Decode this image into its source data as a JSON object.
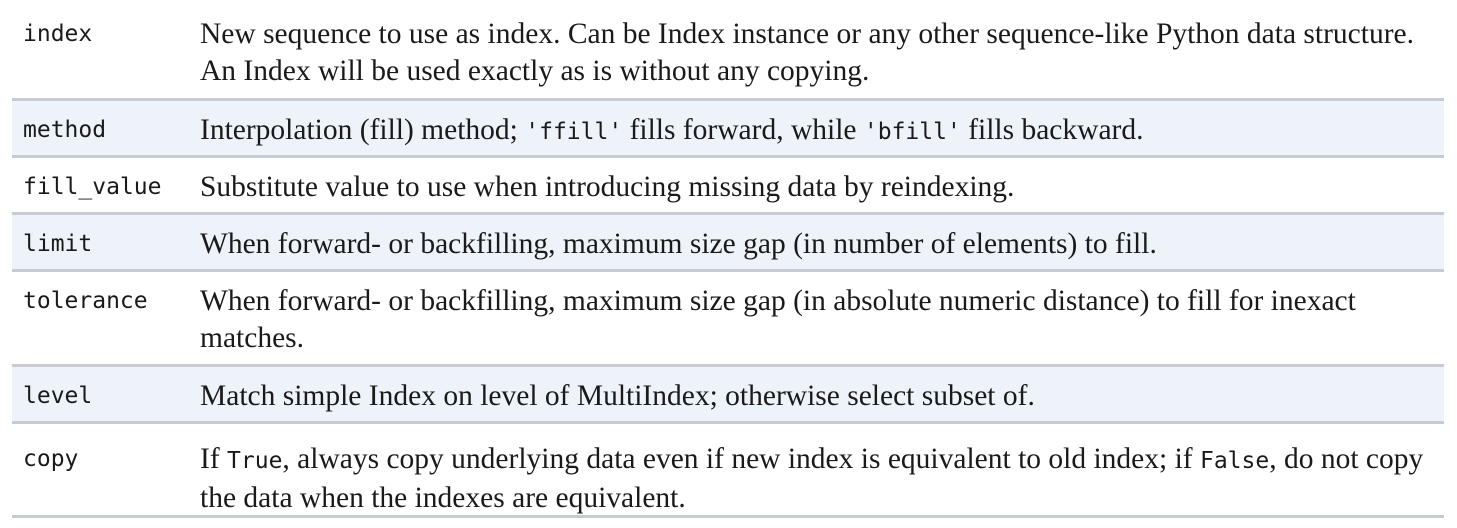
{
  "rows": [
    {
      "param": "index",
      "desc": "New sequence to use as index. Can be Index instance or any other sequence-like Python data structure. An Index will be used exactly as is without any copying."
    },
    {
      "param": "method",
      "desc_a": "Interpolation (fill) method; ",
      "code_a": "'ffill'",
      "desc_b": " fills forward, while ",
      "code_b": "'bfill'",
      "desc_c": " fills backward."
    },
    {
      "param": "fill_value",
      "desc": "Substitute value to use when introducing missing data by reindexing."
    },
    {
      "param": "limit",
      "desc": "When forward- or backfilling, maximum size gap (in number of elements) to fill."
    },
    {
      "param": "tolerance",
      "desc": "When forward- or backfilling, maximum size gap (in absolute numeric distance) to fill for inexact matches."
    },
    {
      "param": "level",
      "desc": "Match simple Index on level of MultiIndex; otherwise select subset of."
    },
    {
      "param": "copy",
      "desc_a": "If ",
      "code_a": "True",
      "desc_b": ", always copy underlying data even if new index is equivalent to old index; if ",
      "code_b": "False",
      "desc_c": ", do not copy the data when the indexes are equivalent."
    }
  ]
}
